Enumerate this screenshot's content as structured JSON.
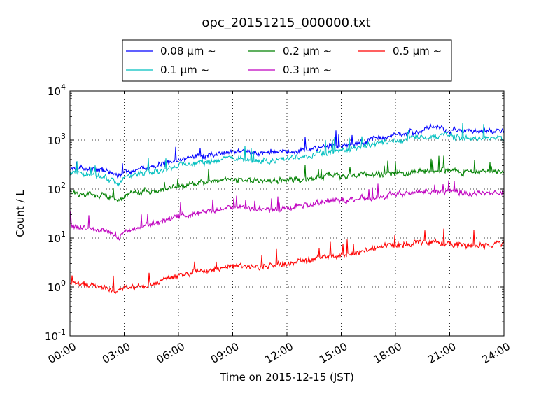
{
  "chart_data": {
    "type": "line",
    "title": "opc_20151215_000000.txt",
    "xlabel": "Time on 2015-12-15 (JST)",
    "ylabel": "Count / L",
    "yscale": "log",
    "xlim_hours": [
      0,
      24
    ],
    "ylim": [
      0.1,
      10000
    ],
    "grid": true,
    "legend_position": "top-center",
    "x_ticks": [
      "00:00",
      "03:00",
      "06:00",
      "09:00",
      "12:00",
      "15:00",
      "18:00",
      "21:00",
      "24:00"
    ],
    "y_ticks": [
      {
        "value": 0.1,
        "mant": "10",
        "exp": "-1"
      },
      {
        "value": 1,
        "mant": "10",
        "exp": "0"
      },
      {
        "value": 10,
        "mant": "10",
        "exp": "1"
      },
      {
        "value": 100,
        "mant": "10",
        "exp": "2"
      },
      {
        "value": 1000,
        "mant": "10",
        "exp": "3"
      },
      {
        "value": 10000,
        "mant": "10",
        "exp": "4"
      }
    ],
    "x_hours": [
      0,
      1,
      2,
      2.7,
      3,
      4,
      5,
      6,
      7,
      8,
      9,
      10,
      11,
      12,
      13,
      14,
      15,
      16,
      17,
      18,
      19,
      20,
      21,
      22,
      23,
      24
    ],
    "series": [
      {
        "name": "0.08 μm ~",
        "color": "#0000ff",
        "values": [
          290,
          260,
          230,
          170,
          230,
          260,
          300,
          400,
          460,
          520,
          600,
          560,
          550,
          580,
          630,
          700,
          750,
          850,
          1050,
          1300,
          1450,
          1750,
          1600,
          1500,
          1550,
          1600
        ]
      },
      {
        "name": "0.1 μm ~",
        "color": "#00bfbf",
        "values": [
          220,
          200,
          175,
          135,
          180,
          210,
          230,
          310,
          330,
          380,
          420,
          380,
          380,
          420,
          460,
          540,
          600,
          700,
          850,
          1000,
          1100,
          1300,
          1200,
          1100,
          1100,
          1000
        ]
      },
      {
        "name": "0.2 μm ~",
        "color": "#008000",
        "values": [
          85,
          80,
          72,
          55,
          72,
          85,
          95,
          110,
          125,
          140,
          160,
          150,
          140,
          150,
          160,
          175,
          185,
          190,
          205,
          215,
          225,
          245,
          235,
          225,
          225,
          230
        ]
      },
      {
        "name": "0.3 μm ~",
        "color": "#bf00bf",
        "values": [
          18,
          16,
          14,
          10,
          14,
          17,
          21,
          27,
          32,
          37,
          44,
          40,
          38,
          42,
          46,
          52,
          58,
          63,
          70,
          75,
          80,
          87,
          85,
          83,
          83,
          85
        ]
      },
      {
        "name": "0.5 μm ~",
        "color": "#ff0000",
        "values": [
          1.2,
          1.1,
          1.0,
          0.85,
          0.95,
          1.1,
          1.3,
          1.7,
          2.0,
          2.3,
          2.7,
          2.6,
          2.7,
          3.0,
          3.4,
          4.0,
          4.6,
          5.2,
          6.2,
          7.2,
          7.6,
          8.2,
          7.5,
          7.0,
          7.0,
          7.8
        ]
      }
    ]
  }
}
